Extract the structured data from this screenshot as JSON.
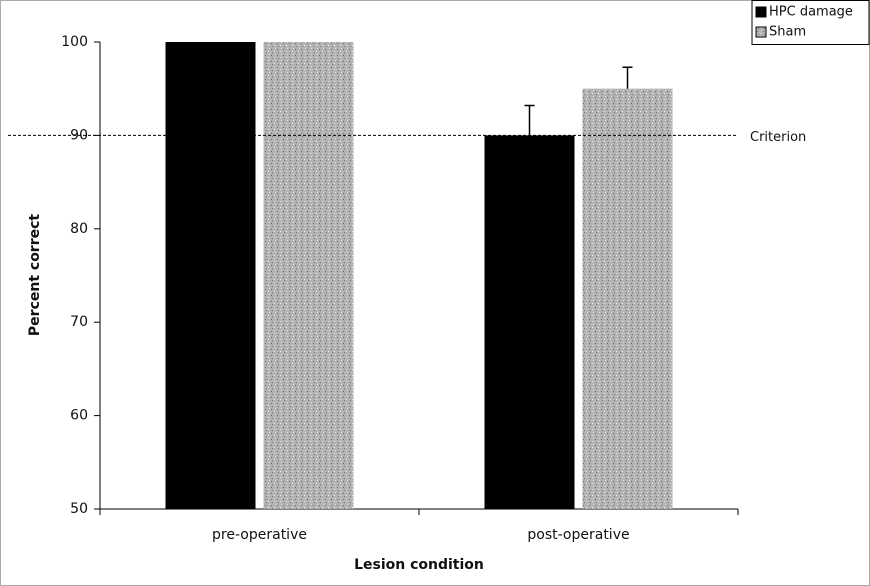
{
  "chart_data": {
    "type": "bar",
    "xlabel": "Lesion condition",
    "ylabel": "Percent correct",
    "categories": [
      "pre-operative",
      "post-operative"
    ],
    "series": [
      {
        "name": "HPC damage",
        "color": "#000000",
        "values": [
          100,
          90
        ],
        "errors": [
          null,
          3.2
        ]
      },
      {
        "name": "Sham",
        "color": "#ababab",
        "values": [
          100,
          95
        ],
        "errors": [
          null,
          2.3
        ]
      }
    ],
    "reference_line": {
      "value": 90,
      "label": "Criterion"
    },
    "ylim": [
      50,
      100
    ],
    "yticks": [
      50,
      60,
      70,
      80,
      90,
      100
    ],
    "legend": "top-right"
  }
}
